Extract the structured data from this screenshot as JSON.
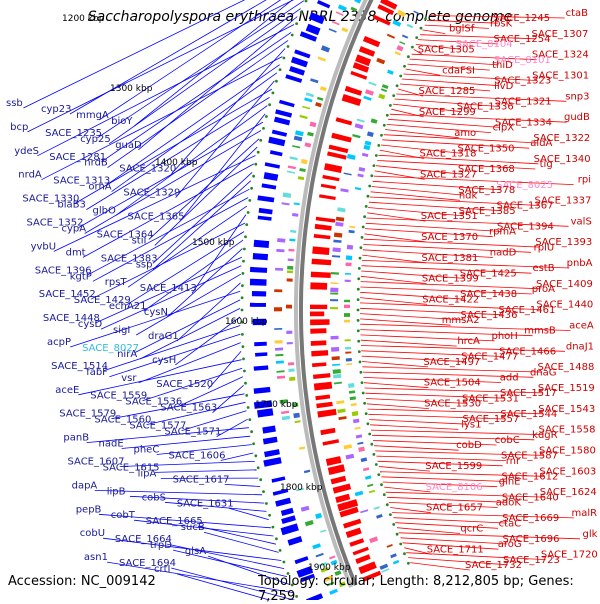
{
  "title": "Saccharopolyspora erythraea NRRL 2338, complete genome",
  "accession": "Accession: NC_009142",
  "topology": "Topology: circular; Length: 8,212,805 bp; Genes: 7,259",
  "colors": {
    "forward_strand": "#ff0000",
    "reverse_strand": "#0000ff",
    "pink_label": "#ff88cc",
    "cyan_label": "#33bbdd",
    "backbone": "#999999",
    "tick_marks": "#228822"
  },
  "scale_labels": [
    "1200 kbp",
    "1300 kbp",
    "1400 kbp",
    "1500 kbp",
    "1600 kbp",
    "1700 kbp",
    "1800 kbp",
    "1900 kbp"
  ],
  "left_labels": [
    "ssb",
    "cyp23",
    "mmgA",
    "bioY",
    "bcp",
    "SACE_1235",
    "cyp25",
    "guaD",
    "ydeS",
    "SACE_1281",
    "nrdB",
    "SACE_1320",
    "nrdA",
    "SACE_1313",
    "ornA",
    "SACE_1329",
    "SACE_1330",
    "blaB3",
    "glbO",
    "SACE_1365",
    "SACE_1352",
    "cypA",
    "SACE_1364",
    "stiI",
    "yvbU",
    "dmt",
    "SACE_1383",
    "ssp",
    "SACE_1396",
    "kgtP",
    "rpsT",
    "SACE_1413",
    "SACE_1452",
    "SACE_1429",
    "echA21",
    "cysN",
    "SACE_1448",
    "cysD",
    "sigI",
    "draG1",
    "acpP",
    "SACE_8027",
    "nirA",
    "cysH",
    "SACE_1514",
    "fabF",
    "vsr",
    "SACE_1520",
    "aceE",
    "SACE_1559",
    "SACE_1536",
    "SACE_1563",
    "SACE_1579",
    "SACE_1560",
    "SACE_1577",
    "SACE_1571",
    "panB",
    "nadE",
    "pheC",
    "SACE_1606",
    "SACE_1607",
    "SACE_1615",
    "lipA",
    "SACE_1617",
    "dapA",
    "lipB",
    "cobS",
    "SACE_1631",
    "pepB",
    "cobT",
    "SACE_1665",
    "sucB",
    "cobU",
    "SACE_1664",
    "trpD",
    "glsA",
    "asn1",
    "SACE_1694",
    "crtI"
  ],
  "right_labels": [
    "ctaB",
    "SACE_1245",
    "rbsK",
    "bglSf",
    "SACE_1307",
    "SACE_1254",
    "SACE_8104",
    "SACE_1305",
    "SACE_1324",
    "SACE_8101",
    "thiD",
    "cdaFSI",
    "SACE_1301",
    "SACE_1323",
    "ilvD",
    "SACE_1285",
    "snp3",
    "SACE_1321",
    "SACE_1336",
    "SACE_1299",
    "gudB",
    "SACE_1334",
    "clpX",
    "amo",
    "SACE_1322",
    "aldA",
    "SACE_1350",
    "SACE_1318",
    "SACE_1340",
    "tig",
    "SACE_1368",
    "SACE_1327",
    "rpi",
    "SACE_8025",
    "SACE_1378",
    "ndk",
    "SACE_1337",
    "SACE_1367",
    "SACE_1385",
    "SACE_1351",
    "valS",
    "SACE_1394",
    "rpmA",
    "SACE_1370",
    "SACE_1393",
    "rplU",
    "nadD",
    "SACE_1381",
    "pnbA",
    "estB",
    "SACE_1425",
    "SACE_1399",
    "SACE_1409",
    "proA",
    "SACE_1438",
    "SACE_1422",
    "SACE_1440",
    "SACE_1461",
    "SACE_1436",
    "mmsA2",
    "aceA",
    "mmsB",
    "phoH",
    "hrcA",
    "dnaJ1",
    "SACE_1466",
    "SACE_1477",
    "SACE_1497",
    "SACE_1488",
    "dnaG",
    "add",
    "SACE_1504",
    "SACE_1519",
    "SACE_1517",
    "SACE_1531",
    "SACE_1530",
    "SACE_1543",
    "SACE_1544",
    "SACE_1557",
    "lys1",
    "SACE_1558",
    "kdgR",
    "cobC",
    "cobD",
    "SACE_1580",
    "SACE_1587",
    "rnr",
    "SACE_1599",
    "SACE_1603",
    "SACE_1612",
    "glnE",
    "SACE_8106",
    "SACE_1624",
    "SACE_1640",
    "adoK",
    "SACE_1657",
    "malR",
    "SACE_1669",
    "ctaC",
    "qcrC",
    "glk",
    "SACE_1696",
    "aroG",
    "SACE_1711",
    "SACE_1720",
    "SACE_1723",
    "SACE_1732"
  ],
  "pink_right_labels": [
    "SACE_8104",
    "SACE_8101",
    "SACE_8025",
    "SACE_8106"
  ],
  "cyan_left_labels": [
    "SACE_8027"
  ]
}
